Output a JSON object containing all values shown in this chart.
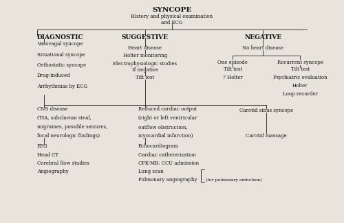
{
  "background_color": "#e8e4dc",
  "title": "SYNCOPE",
  "subtitle": "History and physical examination\nand ECG",
  "col1_header": "DIAGNOSTIC",
  "col2_header": "SUGGESTIVE",
  "col3_header": "NEGATIVE",
  "col1_items": [
    "Vasovagal syncope",
    "Situational syncope",
    "Orthostatic syncope",
    "Drug-induced",
    "Arrhythmias by ECG"
  ],
  "one_ep_items": [
    "Tilt test",
    "? Holter"
  ],
  "recurrent_items": [
    "Tilt test",
    "Psychiatric evaluation",
    "Holter",
    "Loop recorder"
  ],
  "cns_lines": [
    "CNS disease",
    "(TIA, subclavian steal,",
    "migraines, possible seizures,",
    "focal neurologic findings)"
  ],
  "eeg_lines": [
    "EEG",
    "Head CT",
    "Cerebral flow studies",
    "Angiography"
  ],
  "reduced_lines": [
    "Reduced cardiac output",
    "(right or left ventricular",
    "outflow obstruction,",
    "myocardial infarction)"
  ],
  "echo_lines": [
    "Echocardiogram",
    "Cardiac catheterization",
    "CPK-MB: CCU admission",
    "Lung scan",
    "Pulmonary angiography"
  ],
  "for_pulm": "(for pulmonary embolism)",
  "font_size_title": 7.5,
  "font_size_header": 6.5,
  "font_size_body": 5.0,
  "line_color": "#222222",
  "text_color": "#111111"
}
